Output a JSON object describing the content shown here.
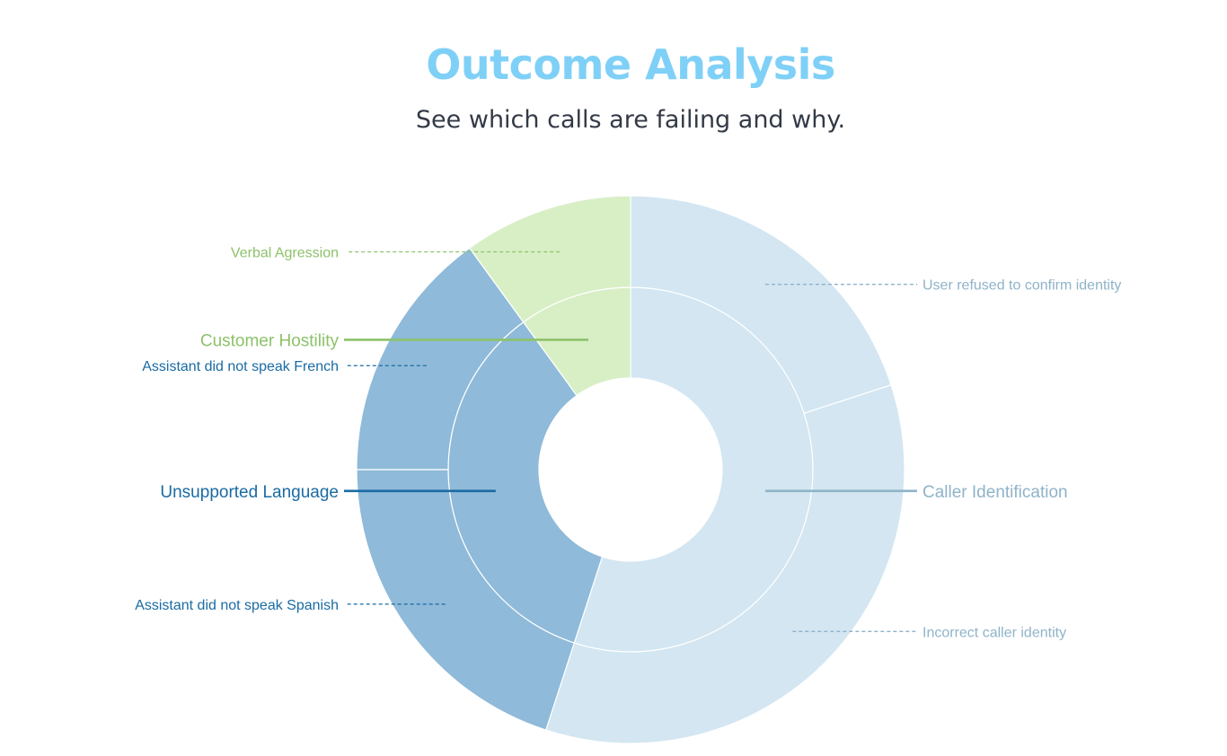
{
  "header": {
    "title": "Outcome Analysis",
    "subtitle": "See which calls are failing and why."
  },
  "chart_data": {
    "type": "sunburst",
    "title": "Outcome Analysis",
    "subtitle": "See which calls are failing and why.",
    "categories": [
      {
        "name": "Caller Identification",
        "value": 55,
        "color": "#d3e6f2",
        "label_color": "#8fb3c9",
        "children": [
          {
            "name": "User refused to confirm identity",
            "value": 20
          },
          {
            "name": "Incorrect caller identity",
            "value": 35
          }
        ]
      },
      {
        "name": "Unsupported Language",
        "value": 35,
        "color": "#8fbad9",
        "label_color": "#1a6ba3",
        "children": [
          {
            "name": "Assistant did not speak Spanish",
            "value": 20
          },
          {
            "name": "Assistant did not speak French",
            "value": 15
          }
        ]
      },
      {
        "name": "Customer Hostility",
        "value": 10,
        "color": "#d8efc6",
        "label_color": "#8cc26a",
        "children": [
          {
            "name": "Verbal Agression",
            "value": 10
          }
        ]
      }
    ]
  }
}
